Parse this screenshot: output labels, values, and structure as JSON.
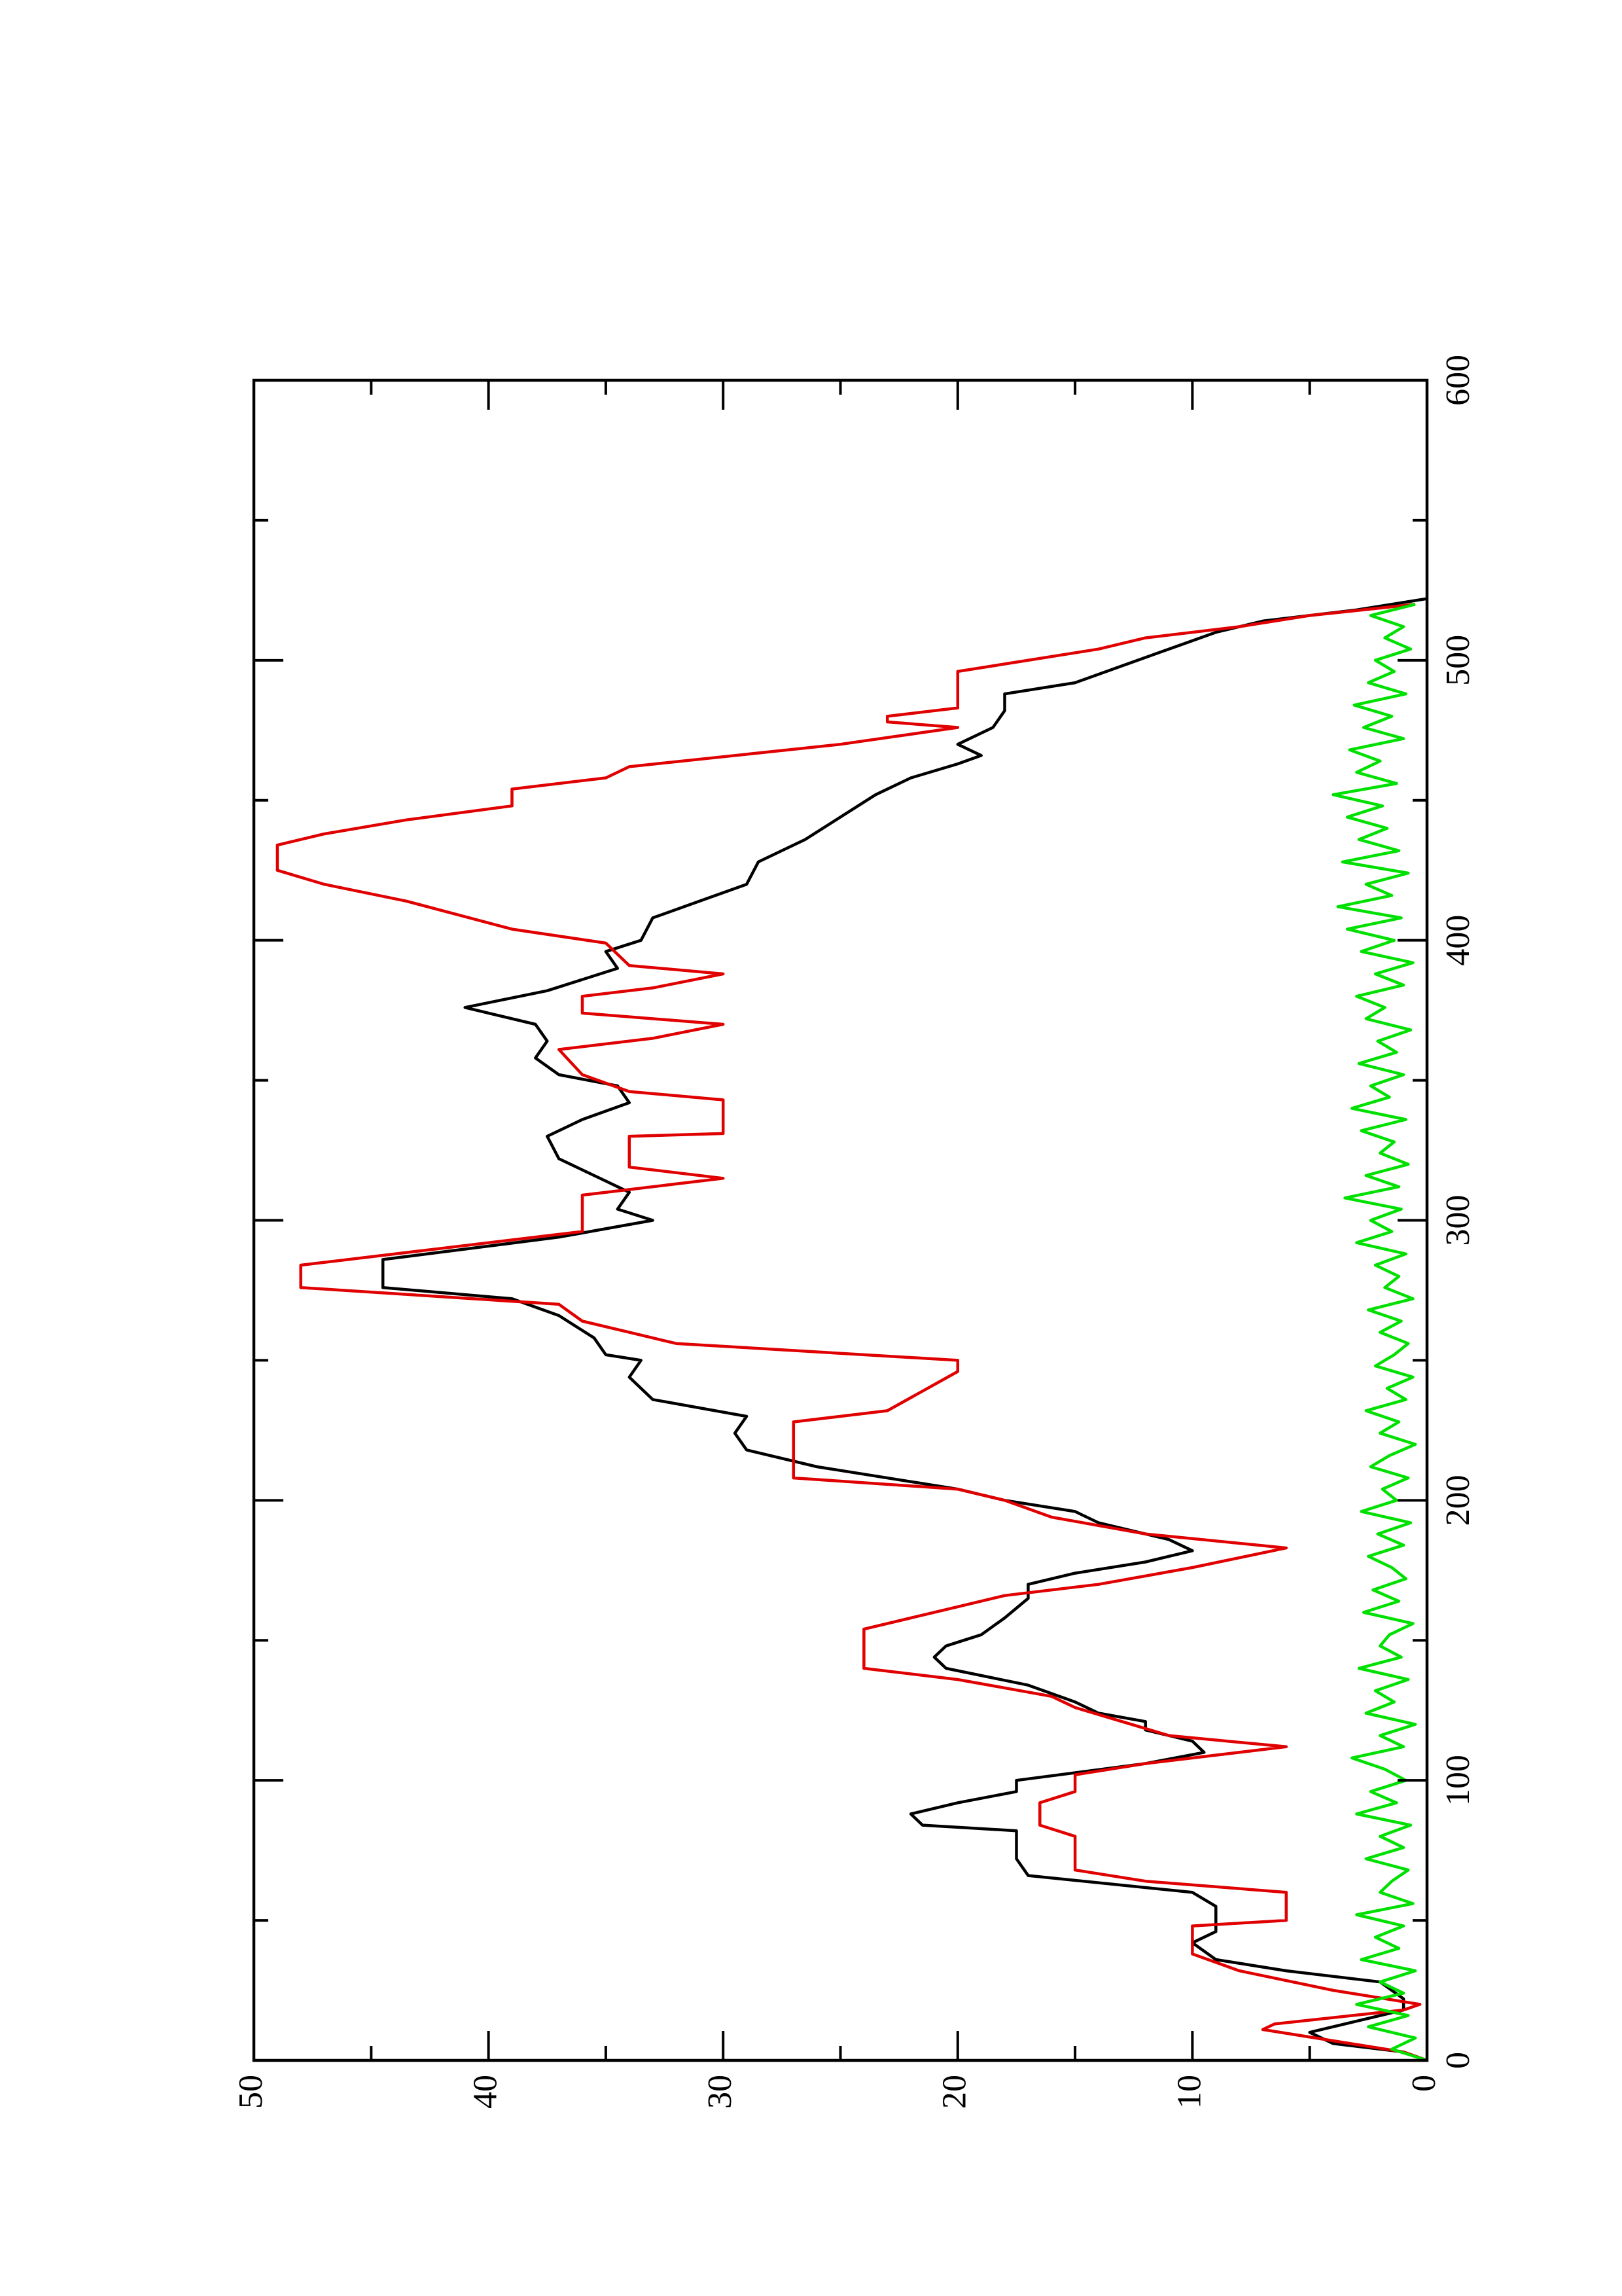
{
  "chart_data": {
    "type": "line",
    "xlim": [
      0,
      600
    ],
    "xticks": [
      0,
      100,
      200,
      300,
      400,
      500,
      600
    ],
    "xticks_minor": [
      50,
      150,
      250,
      350,
      450,
      550
    ],
    "ylim": [
      0,
      50
    ],
    "yticks": [
      0,
      10,
      20,
      30,
      40,
      50
    ],
    "yticks_minor": [
      5,
      15,
      25,
      35,
      45
    ],
    "series": [
      {
        "color": "#000000",
        "x": [
          0,
          3,
          6,
          10,
          14,
          18,
          22,
          28,
          32,
          36,
          42,
          46,
          55,
          60,
          66,
          72,
          82,
          84,
          88,
          92,
          96,
          100,
          106,
          110,
          114,
          118,
          121,
          124,
          128,
          134,
          140,
          144,
          148,
          152,
          158,
          165,
          170,
          174,
          178,
          182,
          186,
          192,
          196,
          200,
          204,
          212,
          218,
          224,
          230,
          236,
          244,
          250,
          252,
          258,
          266,
          272,
          276,
          286,
          294,
          300,
          304,
          310,
          316,
          322,
          330,
          336,
          342,
          348,
          352,
          358,
          364,
          370,
          376,
          382,
          390,
          396,
          400,
          408,
          414,
          420,
          428,
          436,
          444,
          452,
          458,
          463,
          466,
          470,
          476,
          482,
          488,
          492,
          498,
          504,
          510,
          514,
          518,
          522
        ],
        "values": [
          0,
          1,
          4,
          5,
          3,
          1,
          1,
          2,
          6,
          9,
          10,
          9,
          9,
          10,
          17,
          17.5,
          17.5,
          21.5,
          22,
          20,
          17.5,
          17.5,
          12,
          9.5,
          10,
          12,
          12,
          14,
          15,
          17,
          20.5,
          21,
          20.5,
          19,
          18,
          17,
          17,
          15,
          12,
          10,
          11,
          14,
          15,
          18,
          20,
          26,
          29,
          29.5,
          29,
          33,
          34,
          33.5,
          35,
          35.5,
          37,
          39,
          44.5,
          44.5,
          37,
          33,
          34.5,
          34,
          35.5,
          37,
          37.5,
          36,
          34,
          34.5,
          37,
          38,
          37.5,
          38,
          41,
          37.5,
          34.5,
          35,
          33.5,
          33,
          31,
          29,
          28.5,
          26.5,
          25,
          23.5,
          22,
          20,
          19,
          20,
          18.5,
          18,
          18,
          15,
          13,
          11,
          9,
          7,
          3,
          0
        ]
      },
      {
        "color": "#e00000",
        "x": [
          0,
          3,
          11,
          13,
          18,
          20,
          25,
          32,
          38,
          48,
          50,
          60,
          64,
          68,
          80,
          84,
          92,
          96,
          102,
          106,
          112,
          116,
          121,
          126,
          130,
          136,
          140,
          154,
          158,
          162,
          166,
          170,
          176,
          183,
          188,
          194,
          200,
          204,
          208,
          228,
          232,
          246,
          250,
          256,
          260,
          264,
          270,
          276,
          284,
          290,
          296,
          309,
          315,
          319,
          330,
          331,
          343,
          346,
          352,
          361,
          365,
          370,
          374,
          380,
          383,
          388,
          391,
          399,
          404,
          414,
          420,
          425,
          434,
          438,
          443,
          448,
          454,
          458,
          462,
          470,
          476,
          478,
          480,
          483,
          496,
          504,
          508,
          512,
          516,
          520
        ],
        "values": [
          0,
          1,
          7,
          6.5,
          1,
          0.3,
          4,
          8,
          10,
          10,
          6,
          6,
          12,
          15,
          15,
          16.5,
          16.5,
          15,
          15,
          12,
          6,
          11,
          13,
          15,
          16,
          20,
          24,
          24,
          22,
          20,
          18,
          14,
          10,
          6,
          12,
          16,
          18,
          20,
          27,
          27,
          23,
          20,
          20,
          32,
          34,
          36,
          37,
          48,
          48,
          42,
          36,
          36,
          30,
          34,
          34,
          30,
          30,
          34,
          36,
          37,
          33,
          30,
          36,
          36,
          33,
          30,
          34,
          35,
          39,
          43.5,
          47,
          49,
          49,
          47,
          43.5,
          39,
          39,
          35,
          34,
          25,
          20,
          23,
          23,
          20,
          20,
          14,
          12,
          8,
          5,
          0.5
        ]
      },
      {
        "color": "#00e000",
        "x": [
          0,
          4,
          8,
          12,
          16,
          20,
          24,
          28,
          32,
          36,
          40,
          44,
          48,
          52,
          56,
          60,
          64,
          68,
          72,
          76,
          80,
          84,
          88,
          92,
          96,
          100,
          104,
          108,
          112,
          116,
          120,
          124,
          128,
          132,
          136,
          140,
          144,
          148,
          152,
          156,
          160,
          164,
          168,
          172,
          176,
          180,
          184,
          188,
          192,
          196,
          200,
          204,
          208,
          212,
          216,
          220,
          224,
          228,
          232,
          236,
          240,
          244,
          248,
          252,
          256,
          260,
          264,
          268,
          272,
          276,
          280,
          284,
          288,
          292,
          296,
          300,
          304,
          308,
          312,
          316,
          320,
          324,
          328,
          332,
          336,
          340,
          344,
          348,
          352,
          356,
          360,
          364,
          368,
          372,
          376,
          380,
          384,
          388,
          392,
          396,
          400,
          404,
          408,
          412,
          416,
          420,
          424,
          428,
          432,
          436,
          440,
          444,
          448,
          452,
          456,
          460,
          464,
          468,
          472,
          476,
          480,
          484,
          488,
          492,
          496,
          500,
          504,
          508,
          512,
          516,
          520
        ],
        "values": [
          0,
          1.5,
          0.5,
          2.5,
          0.8,
          3,
          1,
          2,
          0.5,
          2.8,
          1.2,
          2.2,
          1,
          3,
          0.6,
          2,
          1.5,
          0.8,
          2.6,
          1,
          2,
          0.7,
          3,
          1.3,
          2.4,
          0.9,
          1.8,
          3.2,
          1,
          2,
          0.5,
          2.6,
          1.4,
          2.2,
          0.8,
          2.9,
          1.1,
          2,
          1.6,
          0.6,
          2.7,
          1.2,
          2.3,
          0.9,
          1.5,
          2.5,
          1,
          2.1,
          0.7,
          2.8,
          1.3,
          1.9,
          0.8,
          2.4,
          1.6,
          0.5,
          2,
          1.2,
          2.6,
          0.9,
          1.7,
          0.6,
          2.2,
          1.4,
          0.8,
          2,
          1.1,
          2.5,
          0.6,
          1.8,
          1.2,
          2.2,
          0.9,
          3,
          1.5,
          2.4,
          1.1,
          3.5,
          1.2,
          2.6,
          0.8,
          2,
          1.4,
          2.8,
          0.9,
          3.2,
          1.6,
          2.4,
          1,
          2.9,
          1.3,
          2.1,
          0.7,
          2.6,
          1.8,
          3,
          1,
          2.2,
          0.6,
          2.8,
          1.4,
          3.4,
          1.1,
          3.8,
          1.5,
          2.6,
          0.8,
          3.6,
          1.2,
          2.9,
          1.7,
          3.4,
          1.9,
          4,
          1.3,
          3,
          2,
          3.3,
          1,
          2.7,
          1.5,
          3.1,
          0.9,
          2.5,
          1.4,
          2.2,
          0.7,
          1.8,
          1,
          2.4,
          0.5
        ]
      }
    ]
  }
}
